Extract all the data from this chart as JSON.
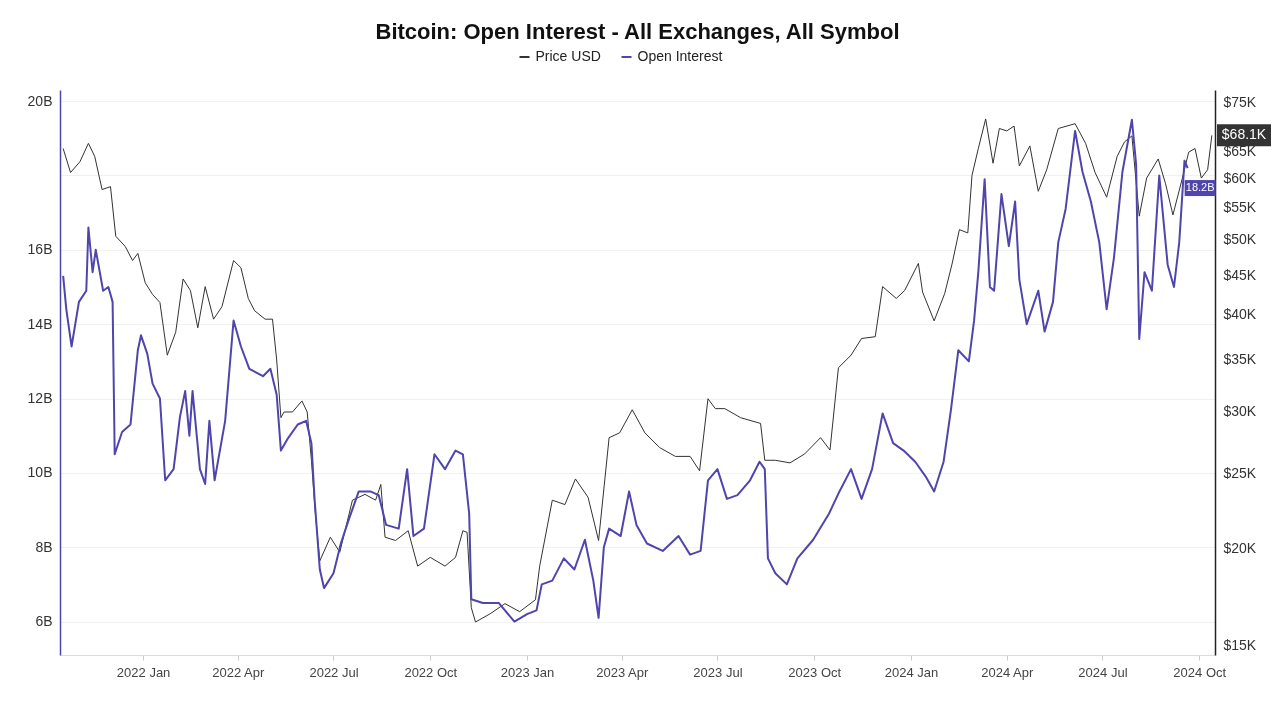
{
  "chart_data": {
    "type": "line",
    "title": "Bitcoin: Open Interest - All Exchanges, All Symbol",
    "legend": "top",
    "grid": "y",
    "xlim": [
      "2021-10-14",
      "2024-10-16"
    ],
    "xticks": [
      {
        "value": "2022-01",
        "label": "2022 Jan"
      },
      {
        "value": "2022-04",
        "label": "2022 Apr"
      },
      {
        "value": "2022-07",
        "label": "2022 Jul"
      },
      {
        "value": "2022-10",
        "label": "2022 Oct"
      },
      {
        "value": "2023-01",
        "label": "2023 Jan"
      },
      {
        "value": "2023-04",
        "label": "2023 Apr"
      },
      {
        "value": "2023-07",
        "label": "2023 Jul"
      },
      {
        "value": "2023-10",
        "label": "2023 Oct"
      },
      {
        "value": "2024-01",
        "label": "2024 Jan"
      },
      {
        "value": "2024-04",
        "label": "2024 Apr"
      },
      {
        "value": "2024-07",
        "label": "2024 Jul"
      },
      {
        "value": "2024-10",
        "label": "2024 Oct"
      }
    ],
    "ylim": [
      5.1,
      20.3
    ],
    "yticks": [
      {
        "value": 6,
        "label": "6B"
      },
      {
        "value": 8,
        "label": "8B"
      },
      {
        "value": 10,
        "label": "10B"
      },
      {
        "value": 12,
        "label": "12B"
      },
      {
        "value": 14,
        "label": "14B"
      },
      {
        "value": 16,
        "label": "16B"
      },
      {
        "value": 18,
        "label": null
      },
      {
        "value": 20,
        "label": "20B"
      }
    ],
    "y2lim": [
      14.6,
      77.9
    ],
    "log": "y2",
    "y2ticks": [
      {
        "value": 15,
        "label": "$15K"
      },
      {
        "value": 20,
        "label": "$20K"
      },
      {
        "value": 25,
        "label": "$25K"
      },
      {
        "value": 30,
        "label": "$30K"
      },
      {
        "value": 35,
        "label": "$35K"
      },
      {
        "value": 40,
        "label": "$40K"
      },
      {
        "value": 45,
        "label": "$45K"
      },
      {
        "value": 50,
        "label": "$50K"
      },
      {
        "value": 55,
        "label": "$55K"
      },
      {
        "value": 60,
        "label": "$60K"
      },
      {
        "value": 65,
        "label": "$65K"
      },
      {
        "value": 75,
        "label": "$75K"
      }
    ],
    "series": [
      {
        "name": "Price USD",
        "color": "#333333",
        "axis": "y2",
        "x": [
          "2021-10-17",
          "2021-10-24",
          "2021-11-02",
          "2021-11-10",
          "2021-11-16",
          "2021-11-23",
          "2021-12-01",
          "2021-12-06",
          "2021-12-15",
          "2021-12-22",
          "2021-12-27",
          "2022-01-03",
          "2022-01-10",
          "2022-01-17",
          "2022-01-24",
          "2022-02-01",
          "2022-02-08",
          "2022-02-15",
          "2022-02-22",
          "2022-03-01",
          "2022-03-09",
          "2022-03-17",
          "2022-03-28",
          "2022-04-04",
          "2022-04-11",
          "2022-04-17",
          "2022-04-27",
          "2022-05-04",
          "2022-05-08",
          "2022-05-12",
          "2022-05-15",
          "2022-05-23",
          "2022-06-01",
          "2022-06-06",
          "2022-06-10",
          "2022-06-14",
          "2022-06-18",
          "2022-06-28",
          "2022-07-07",
          "2022-07-19",
          "2022-07-31",
          "2022-08-10",
          "2022-08-15",
          "2022-08-19",
          "2022-08-29",
          "2022-09-10",
          "2022-09-19",
          "2022-10-01",
          "2022-10-15",
          "2022-10-25",
          "2022-11-01",
          "2022-11-05",
          "2022-11-09",
          "2022-11-13",
          "2022-11-27",
          "2022-12-11",
          "2022-12-25",
          "2023-01-09",
          "2023-01-13",
          "2023-01-25",
          "2023-02-06",
          "2023-02-16",
          "2023-02-28",
          "2023-03-10",
          "2023-03-16",
          "2023-03-20",
          "2023-03-30",
          "2023-04-11",
          "2023-04-23",
          "2023-05-07",
          "2023-05-22",
          "2023-06-05",
          "2023-06-14",
          "2023-06-22",
          "2023-06-29",
          "2023-07-08",
          "2023-07-23",
          "2023-08-11",
          "2023-08-15",
          "2023-08-25",
          "2023-09-08",
          "2023-09-22",
          "2023-10-07",
          "2023-10-16",
          "2023-10-24",
          "2023-11-05",
          "2023-11-15",
          "2023-11-28",
          "2023-12-05",
          "2023-12-18",
          "2023-12-26",
          "2024-01-08",
          "2024-01-12",
          "2024-01-23",
          "2024-02-02",
          "2024-02-09",
          "2024-02-16",
          "2024-02-24",
          "2024-02-28",
          "2024-03-05",
          "2024-03-12",
          "2024-03-19",
          "2024-03-25",
          "2024-04-01",
          "2024-04-08",
          "2024-04-13",
          "2024-04-23",
          "2024-05-01",
          "2024-05-09",
          "2024-05-20",
          "2024-06-05",
          "2024-06-15",
          "2024-06-24",
          "2024-07-05",
          "2024-07-15",
          "2024-07-22",
          "2024-07-29",
          "2024-08-05",
          "2024-08-12",
          "2024-08-23",
          "2024-08-30",
          "2024-09-06",
          "2024-09-15",
          "2024-09-21",
          "2024-09-27",
          "2024-10-03",
          "2024-10-09",
          "2024-10-13"
        ],
        "values": [
          65.5,
          61,
          63,
          66.5,
          64,
          58,
          58.5,
          50.5,
          49,
          47,
          48,
          44,
          42.5,
          41.5,
          35.5,
          38,
          44.5,
          43,
          38.5,
          43.5,
          39.5,
          41,
          47,
          46,
          42,
          40.5,
          39.5,
          39.5,
          35,
          29.5,
          30,
          30,
          31,
          30,
          26,
          22,
          19.3,
          20.7,
          19.8,
          23.1,
          23.5,
          23.1,
          24.2,
          20.7,
          20.5,
          21.1,
          19.0,
          19.5,
          19.0,
          19.5,
          21.1,
          21.0,
          16.8,
          16.1,
          16.5,
          17.0,
          16.6,
          17.2,
          19.0,
          23.1,
          22.8,
          24.6,
          23.3,
          20.5,
          24.6,
          27.8,
          28.2,
          30.2,
          28.2,
          27.0,
          26.3,
          26.3,
          25.2,
          31.2,
          30.3,
          30.3,
          29.5,
          29.0,
          26.0,
          26.0,
          25.8,
          26.5,
          27.8,
          26.8,
          34.2,
          35.5,
          37.3,
          37.5,
          43.5,
          42.0,
          43.0,
          46.6,
          42.8,
          39.3,
          42.6,
          46.5,
          51.5,
          51.0,
          60.5,
          65.5,
          71.5,
          62.7,
          69.5,
          69,
          70,
          62.2,
          66,
          57.7,
          61.5,
          69.5,
          70.5,
          66.5,
          61,
          56.7,
          64,
          66.8,
          68,
          53.6,
          60,
          63.5,
          59,
          53.8,
          60,
          64.8,
          65.5,
          60,
          61.5,
          68.1
        ],
        "value_labels": [
          null,
          null,
          null,
          null,
          null,
          null,
          null,
          null,
          null,
          null,
          null,
          null,
          null,
          null,
          null,
          null,
          null,
          null,
          null,
          null,
          null,
          null,
          null,
          null,
          null,
          null,
          null,
          null,
          null,
          null,
          null,
          null,
          null,
          null,
          null,
          null,
          null,
          null,
          null,
          null,
          null,
          null,
          null,
          null,
          null,
          null,
          null,
          null,
          null,
          null,
          null,
          null,
          null,
          null,
          null,
          null,
          null,
          null,
          null,
          null,
          null,
          null,
          null,
          null,
          null,
          null,
          null,
          null,
          null,
          null,
          null,
          null,
          null,
          null,
          null,
          null,
          null,
          null,
          null,
          null,
          null,
          null,
          null,
          null,
          null,
          null,
          null,
          null,
          null,
          null,
          null,
          null,
          null,
          null,
          null,
          null,
          null,
          null,
          null,
          null,
          null,
          null,
          null,
          null,
          null,
          null,
          null,
          null,
          null,
          null,
          null,
          null,
          null,
          null,
          null,
          null,
          null,
          null,
          null,
          null,
          null,
          null,
          null,
          null,
          null,
          null,
          null,
          "$68.1K"
        ]
      },
      {
        "name": "Open Interest",
        "color": "#4f45ad",
        "axis": "y",
        "x": [
          "2021-10-17",
          "2021-10-20",
          "2021-10-25",
          "2021-11-01",
          "2021-11-08",
          "2021-11-10",
          "2021-11-14",
          "2021-11-17",
          "2021-11-24",
          "2021-11-29",
          "2021-12-03",
          "2021-12-05",
          "2021-12-12",
          "2021-12-20",
          "2021-12-27",
          "2021-12-30",
          "2022-01-05",
          "2022-01-10",
          "2022-01-17",
          "2022-01-22",
          "2022-01-30",
          "2022-02-05",
          "2022-02-10",
          "2022-02-14",
          "2022-02-17",
          "2022-02-24",
          "2022-03-01",
          "2022-03-05",
          "2022-03-10",
          "2022-03-20",
          "2022-03-28",
          "2022-04-04",
          "2022-04-12",
          "2022-04-25",
          "2022-05-02",
          "2022-05-08",
          "2022-05-12",
          "2022-05-18",
          "2022-05-28",
          "2022-06-05",
          "2022-06-10",
          "2022-06-13",
          "2022-06-18",
          "2022-06-22",
          "2022-07-01",
          "2022-07-08",
          "2022-07-15",
          "2022-07-25",
          "2022-08-05",
          "2022-08-13",
          "2022-08-20",
          "2022-09-01",
          "2022-09-09",
          "2022-09-15",
          "2022-09-25",
          "2022-10-05",
          "2022-10-15",
          "2022-10-25",
          "2022-11-01",
          "2022-11-07",
          "2022-11-09",
          "2022-11-20",
          "2022-12-05",
          "2022-12-20",
          "2023-01-01",
          "2023-01-10",
          "2023-01-15",
          "2023-01-25",
          "2023-02-05",
          "2023-02-15",
          "2023-02-25",
          "2023-03-05",
          "2023-03-10",
          "2023-03-15",
          "2023-03-20",
          "2023-03-31",
          "2023-04-08",
          "2023-04-15",
          "2023-04-25",
          "2023-05-10",
          "2023-05-25",
          "2023-06-05",
          "2023-06-15",
          "2023-06-22",
          "2023-07-01",
          "2023-07-10",
          "2023-07-20",
          "2023-08-01",
          "2023-08-10",
          "2023-08-15",
          "2023-08-18",
          "2023-08-25",
          "2023-09-05",
          "2023-09-15",
          "2023-09-30",
          "2023-10-15",
          "2023-10-25",
          "2023-11-05",
          "2023-11-15",
          "2023-11-25",
          "2023-12-05",
          "2023-12-15",
          "2023-12-25",
          "2024-01-05",
          "2024-01-15",
          "2024-01-23",
          "2024-02-01",
          "2024-02-08",
          "2024-02-15",
          "2024-02-25",
          "2024-03-01",
          "2024-03-05",
          "2024-03-11",
          "2024-03-16",
          "2024-03-20",
          "2024-03-27",
          "2024-04-03",
          "2024-04-09",
          "2024-04-13",
          "2024-04-20",
          "2024-05-01",
          "2024-05-07",
          "2024-05-15",
          "2024-05-20",
          "2024-05-27",
          "2024-06-05",
          "2024-06-12",
          "2024-06-20",
          "2024-06-28",
          "2024-07-05",
          "2024-07-12",
          "2024-07-20",
          "2024-07-29",
          "2024-08-02",
          "2024-08-05",
          "2024-08-10",
          "2024-08-17",
          "2024-08-24",
          "2024-09-01",
          "2024-09-07",
          "2024-09-12",
          "2024-09-17",
          "2024-09-20"
        ],
        "values": [
          15.3,
          14.4,
          13.4,
          14.6,
          14.9,
          16.6,
          15.4,
          16.0,
          14.9,
          15.0,
          14.6,
          10.5,
          11.1,
          11.3,
          13.3,
          13.7,
          13.2,
          12.4,
          12.0,
          9.8,
          10.1,
          11.5,
          12.2,
          11.0,
          12.2,
          10.1,
          9.7,
          11.4,
          9.8,
          11.4,
          14.1,
          13.4,
          12.8,
          12.6,
          12.8,
          12.1,
          10.6,
          10.9,
          11.3,
          11.4,
          10.8,
          9.3,
          7.4,
          6.9,
          7.3,
          8.1,
          8.7,
          9.5,
          9.5,
          9.4,
          8.6,
          8.5,
          10.1,
          8.3,
          8.5,
          10.5,
          10.1,
          10.6,
          10.5,
          8.9,
          6.6,
          6.5,
          6.5,
          6.0,
          6.2,
          6.3,
          7.0,
          7.1,
          7.7,
          7.4,
          8.2,
          7.1,
          6.1,
          8.0,
          8.5,
          8.3,
          9.5,
          8.6,
          8.1,
          7.9,
          8.3,
          7.8,
          7.9,
          9.8,
          10.1,
          9.3,
          9.4,
          9.8,
          10.3,
          10.1,
          7.7,
          7.3,
          7.0,
          7.7,
          8.2,
          8.9,
          9.5,
          10.1,
          9.3,
          10.1,
          11.6,
          10.8,
          10.6,
          10.3,
          9.9,
          9.5,
          10.3,
          11.7,
          13.3,
          13.0,
          14.1,
          15.4,
          17.9,
          15.0,
          14.9,
          17.5,
          16.1,
          17.3,
          15.2,
          14.0,
          14.9,
          13.8,
          14.6,
          16.2,
          17.1,
          19.2,
          18.1,
          17.3,
          16.2,
          14.4,
          15.8,
          18.1,
          19.5,
          18.3,
          13.6,
          15.4,
          14.9,
          18.0,
          15.6,
          15.0,
          16.2,
          18.4,
          18.2
        ],
        "value_labels": [
          null,
          null,
          null,
          null,
          null,
          null,
          null,
          null,
          null,
          null,
          null,
          null,
          null,
          null,
          null,
          null,
          null,
          null,
          null,
          null,
          null,
          null,
          null,
          null,
          null,
          null,
          null,
          null,
          null,
          null,
          null,
          null,
          null,
          null,
          null,
          null,
          null,
          null,
          null,
          null,
          null,
          null,
          null,
          null,
          null,
          null,
          null,
          null,
          null,
          null,
          null,
          null,
          null,
          null,
          null,
          null,
          null,
          null,
          null,
          null,
          null,
          null,
          null,
          null,
          null,
          null,
          null,
          null,
          null,
          null,
          null,
          null,
          null,
          null,
          null,
          null,
          null,
          null,
          null,
          null,
          null,
          null,
          null,
          null,
          null,
          null,
          null,
          null,
          null,
          null,
          null,
          null,
          null,
          null,
          null,
          null,
          null,
          null,
          null,
          null,
          null,
          null,
          null,
          null,
          null,
          null,
          null,
          null,
          null,
          null,
          null,
          null,
          null,
          null,
          null,
          null,
          null,
          null,
          null,
          null,
          null,
          null,
          null,
          null,
          null,
          null,
          null,
          null,
          null,
          null,
          null,
          null,
          null,
          null,
          null,
          null,
          null,
          null,
          null,
          null,
          null,
          null,
          "18.2B"
        ]
      }
    ]
  }
}
